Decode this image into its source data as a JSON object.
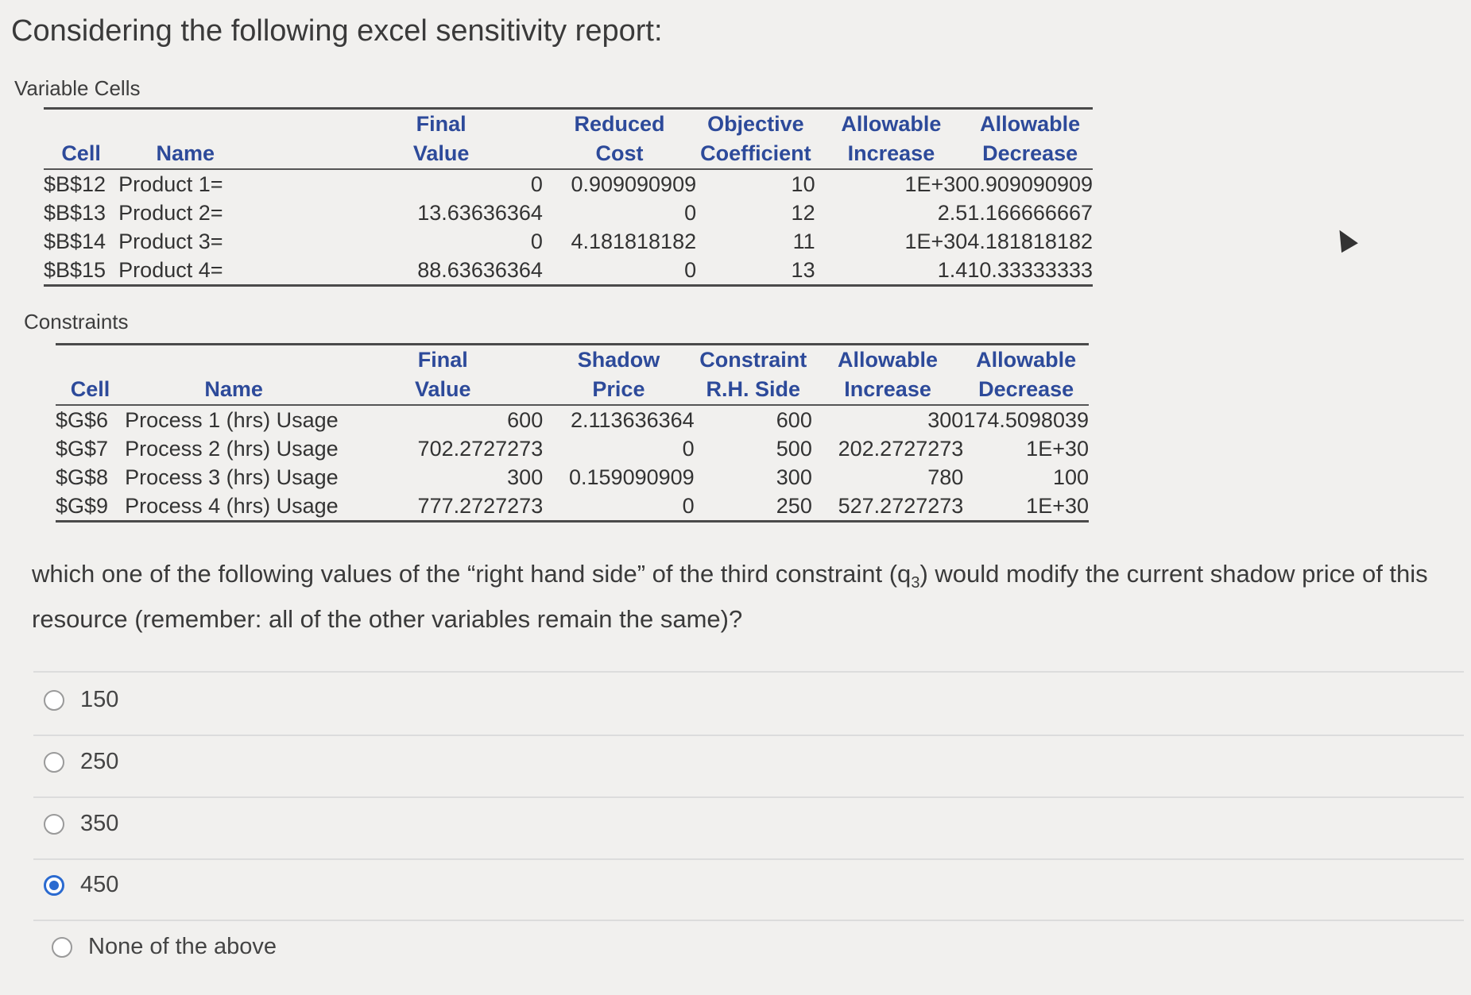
{
  "heading": "Considering the following excel sensitivity report:",
  "variable_cells": {
    "label": "Variable Cells",
    "headers": {
      "cell": "Cell",
      "name": "Name",
      "final_value": [
        "Final",
        "Value"
      ],
      "reduced_cost": [
        "Reduced",
        "Cost"
      ],
      "objective_coefficient": [
        "Objective",
        "Coefficient"
      ],
      "allowable_increase": [
        "Allowable",
        "Increase"
      ],
      "allowable_decrease": [
        "Allowable",
        "Decrease"
      ]
    },
    "rows": [
      {
        "cell": "$B$12",
        "name": "Product 1=",
        "final_value": "0",
        "reduced_cost": "0.909090909",
        "objective_coefficient": "10",
        "allowable_increase": "1E+30",
        "allowable_decrease": "0.909090909"
      },
      {
        "cell": "$B$13",
        "name": "Product 2=",
        "final_value": "13.63636364",
        "reduced_cost": "0",
        "objective_coefficient": "12",
        "allowable_increase": "2.5",
        "allowable_decrease": "1.166666667"
      },
      {
        "cell": "$B$14",
        "name": "Product 3=",
        "final_value": "0",
        "reduced_cost": "4.181818182",
        "objective_coefficient": "11",
        "allowable_increase": "1E+30",
        "allowable_decrease": "4.181818182"
      },
      {
        "cell": "$B$15",
        "name": "Product 4=",
        "final_value": "88.63636364",
        "reduced_cost": "0",
        "objective_coefficient": "13",
        "allowable_increase": "1.4",
        "allowable_decrease": "10.33333333"
      }
    ]
  },
  "constraints": {
    "label": "Constraints",
    "headers": {
      "cell": "Cell",
      "name": "Name",
      "final_value": [
        "Final",
        "Value"
      ],
      "shadow_price": [
        "Shadow",
        "Price"
      ],
      "constraint_rhs": [
        "Constraint",
        "R.H. Side"
      ],
      "allowable_increase": [
        "Allowable",
        "Increase"
      ],
      "allowable_decrease": [
        "Allowable",
        "Decrease"
      ]
    },
    "rows": [
      {
        "cell": "$G$6",
        "name": "Process 1 (hrs) Usage",
        "final_value": "600",
        "shadow_price": "2.113636364",
        "constraint_rhs": "600",
        "allowable_increase": "300",
        "allowable_decrease": "174.5098039"
      },
      {
        "cell": "$G$7",
        "name": "Process 2 (hrs) Usage",
        "final_value": "702.2727273",
        "shadow_price": "0",
        "constraint_rhs": "500",
        "allowable_increase": "202.2727273",
        "allowable_decrease": "1E+30"
      },
      {
        "cell": "$G$8",
        "name": "Process 3 (hrs) Usage",
        "final_value": "300",
        "shadow_price": "0.159090909",
        "constraint_rhs": "300",
        "allowable_increase": "780",
        "allowable_decrease": "100"
      },
      {
        "cell": "$G$9",
        "name": "Process 4 (hrs) Usage",
        "final_value": "777.2727273",
        "shadow_price": "0",
        "constraint_rhs": "250",
        "allowable_increase": "527.2727273",
        "allowable_decrease": "1E+30"
      }
    ]
  },
  "question": {
    "before": "which one of the following values of the “right hand side” of the third constraint (q",
    "subscript": "3",
    "after": ") would modify the current shadow price of this resource (remember: all of the other variables remain the same)?"
  },
  "options": [
    {
      "label": "150",
      "selected": false
    },
    {
      "label": "250",
      "selected": false
    },
    {
      "label": "350",
      "selected": false
    },
    {
      "label": "450",
      "selected": true
    },
    {
      "label": "None of the above",
      "selected": false
    }
  ],
  "colors": {
    "header_blue": "#2d4a9a",
    "radio_selected": "#2a6ad0"
  }
}
